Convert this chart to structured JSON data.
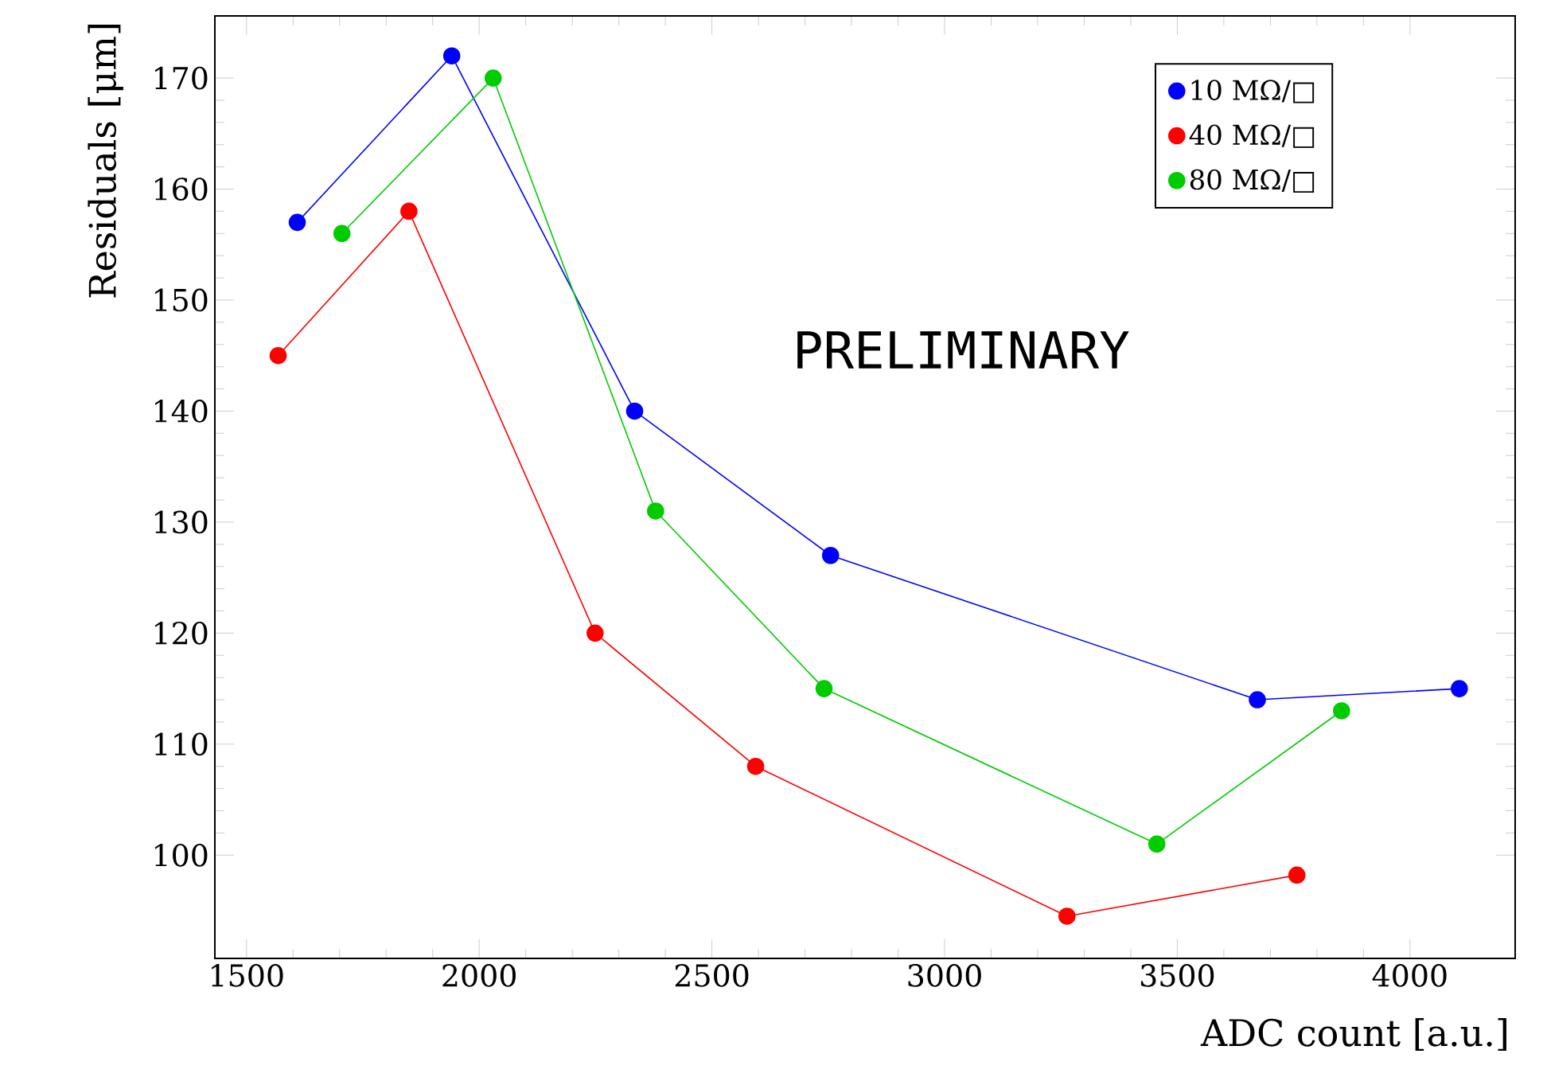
{
  "chart_data": {
    "type": "line",
    "xlabel": "ADC count [a.u.]",
    "ylabel": "Residuals [μm]",
    "xlim": [
      1432,
      4226
    ],
    "ylim": [
      90.7,
      175.6
    ],
    "xticks": [
      1500,
      2000,
      2500,
      3000,
      3500,
      4000
    ],
    "yticks": [
      100,
      110,
      120,
      130,
      140,
      150,
      160,
      170
    ],
    "marker": "circle",
    "line_style": "solid",
    "legend": "top right",
    "grid": false,
    "annotations": [
      "PRELIMINARY"
    ],
    "series": [
      {
        "name": "10 MΩ/□",
        "color": "#0000ff",
        "x": [
          1609,
          1941,
          2334,
          2755,
          3672,
          4106
        ],
        "values": [
          157,
          172,
          140,
          127,
          114,
          115
        ]
      },
      {
        "name": "40 MΩ/□",
        "color": "#ff0000",
        "x": [
          1568,
          1849,
          2249,
          2594,
          3263,
          3757
        ],
        "values": [
          145,
          158,
          120,
          108,
          94.5,
          98.2
        ]
      },
      {
        "name": "80 MΩ/□",
        "color": "#00cc00",
        "x": [
          1705,
          2030,
          2379,
          2741,
          3456,
          3853
        ],
        "values": [
          156,
          170,
          131,
          115,
          101,
          113
        ]
      }
    ]
  }
}
